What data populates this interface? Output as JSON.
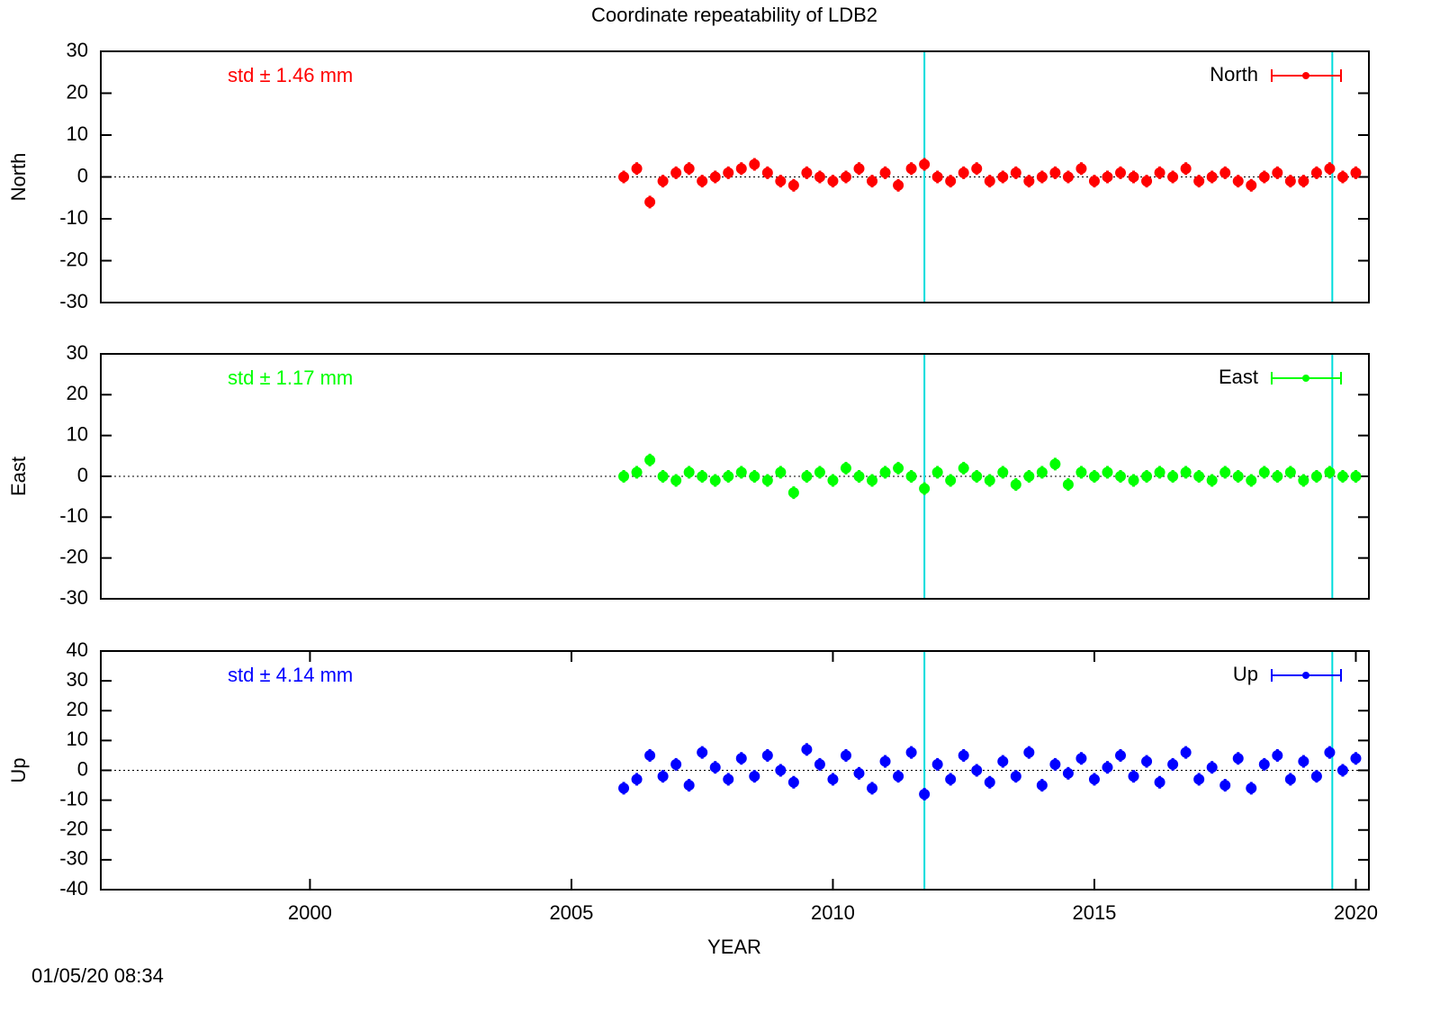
{
  "title": "Coordinate repeatability of LDB2",
  "timestamp": "01/05/20 08:34",
  "chart_data": [
    {
      "type": "scatter",
      "ylabel": "North",
      "annotation": "std ± 1.46 mm",
      "xlim": [
        1996,
        2020.25
      ],
      "ylim": [
        -30,
        30
      ],
      "yticks": [
        -30,
        -20,
        -10,
        0,
        10,
        20,
        30
      ],
      "vlines": [
        2011.75,
        2019.55
      ],
      "series": [
        {
          "name": "North",
          "color": "#ff0000",
          "x": [
            2006,
            2006.25,
            2006.5,
            2006.75,
            2007,
            2007.25,
            2007.5,
            2007.75,
            2008,
            2008.25,
            2008.5,
            2008.75,
            2009,
            2009.25,
            2009.5,
            2009.75,
            2010,
            2010.25,
            2010.5,
            2010.75,
            2011,
            2011.25,
            2011.5,
            2011.75,
            2012,
            2012.25,
            2012.5,
            2012.75,
            2013,
            2013.25,
            2013.5,
            2013.75,
            2014,
            2014.25,
            2014.5,
            2014.75,
            2015,
            2015.25,
            2015.5,
            2015.75,
            2016,
            2016.25,
            2016.5,
            2016.75,
            2017,
            2017.25,
            2017.5,
            2017.75,
            2018,
            2018.25,
            2018.5,
            2018.75,
            2019,
            2019.25,
            2019.5,
            2019.75,
            2020
          ],
          "values": [
            0,
            2,
            -6,
            -1,
            1,
            2,
            -1,
            0,
            1,
            2,
            3,
            1,
            -1,
            -2,
            1,
            0,
            -1,
            0,
            2,
            -1,
            1,
            -2,
            2,
            3,
            0,
            -1,
            1,
            2,
            -1,
            0,
            1,
            -1,
            0,
            1,
            0,
            2,
            -1,
            0,
            1,
            0,
            -1,
            1,
            0,
            2,
            -1,
            0,
            1,
            -1,
            -2,
            0,
            1,
            -1,
            -1,
            1,
            2,
            0,
            1
          ]
        }
      ]
    },
    {
      "type": "scatter",
      "ylabel": "East",
      "annotation": "std ± 1.17 mm",
      "xlim": [
        1996,
        2020.25
      ],
      "ylim": [
        -30,
        30
      ],
      "yticks": [
        -30,
        -20,
        -10,
        0,
        10,
        20,
        30
      ],
      "vlines": [
        2011.75,
        2019.55
      ],
      "series": [
        {
          "name": "East",
          "color": "#00ff00",
          "x": [
            2006,
            2006.25,
            2006.5,
            2006.75,
            2007,
            2007.25,
            2007.5,
            2007.75,
            2008,
            2008.25,
            2008.5,
            2008.75,
            2009,
            2009.25,
            2009.5,
            2009.75,
            2010,
            2010.25,
            2010.5,
            2010.75,
            2011,
            2011.25,
            2011.5,
            2011.75,
            2012,
            2012.25,
            2012.5,
            2012.75,
            2013,
            2013.25,
            2013.5,
            2013.75,
            2014,
            2014.25,
            2014.5,
            2014.75,
            2015,
            2015.25,
            2015.5,
            2015.75,
            2016,
            2016.25,
            2016.5,
            2016.75,
            2017,
            2017.25,
            2017.5,
            2017.75,
            2018,
            2018.25,
            2018.5,
            2018.75,
            2019,
            2019.25,
            2019.5,
            2019.75,
            2020
          ],
          "values": [
            0,
            1,
            4,
            0,
            -1,
            1,
            0,
            -1,
            0,
            1,
            0,
            -1,
            1,
            -4,
            0,
            1,
            -1,
            2,
            0,
            -1,
            1,
            2,
            0,
            -3,
            1,
            -1,
            2,
            0,
            -1,
            1,
            -2,
            0,
            1,
            3,
            -2,
            1,
            0,
            1,
            0,
            -1,
            0,
            1,
            0,
            1,
            0,
            -1,
            1,
            0,
            -1,
            1,
            0,
            1,
            -1,
            0,
            1,
            0,
            0
          ]
        }
      ]
    },
    {
      "type": "scatter",
      "ylabel": "Up",
      "annotation": "std ± 4.14 mm",
      "xlabel": "YEAR",
      "xlim": [
        1996,
        2020.25
      ],
      "ylim": [
        -40,
        40
      ],
      "yticks": [
        -40,
        -30,
        -20,
        -10,
        0,
        10,
        20,
        30,
        40
      ],
      "xticks": [
        2000,
        2005,
        2010,
        2015,
        2020
      ],
      "vlines": [
        2011.75,
        2019.55
      ],
      "series": [
        {
          "name": "Up",
          "color": "#0000ff",
          "x": [
            2006,
            2006.25,
            2006.5,
            2006.75,
            2007,
            2007.25,
            2007.5,
            2007.75,
            2008,
            2008.25,
            2008.5,
            2008.75,
            2009,
            2009.25,
            2009.5,
            2009.75,
            2010,
            2010.25,
            2010.5,
            2010.75,
            2011,
            2011.25,
            2011.5,
            2011.75,
            2012,
            2012.25,
            2012.5,
            2012.75,
            2013,
            2013.25,
            2013.5,
            2013.75,
            2014,
            2014.25,
            2014.5,
            2014.75,
            2015,
            2015.25,
            2015.5,
            2015.75,
            2016,
            2016.25,
            2016.5,
            2016.75,
            2017,
            2017.25,
            2017.5,
            2017.75,
            2018,
            2018.25,
            2018.5,
            2018.75,
            2019,
            2019.25,
            2019.5,
            2019.75,
            2020
          ],
          "values": [
            -6,
            -3,
            5,
            -2,
            2,
            -5,
            6,
            1,
            -3,
            4,
            -2,
            5,
            0,
            -4,
            7,
            2,
            -3,
            5,
            -1,
            -6,
            3,
            -2,
            6,
            -8,
            2,
            -3,
            5,
            0,
            -4,
            3,
            -2,
            6,
            -5,
            2,
            -1,
            4,
            -3,
            1,
            5,
            -2,
            3,
            -4,
            2,
            6,
            -3,
            1,
            -5,
            4,
            -6,
            2,
            5,
            -3,
            3,
            -2,
            6,
            0,
            4
          ]
        }
      ]
    }
  ]
}
